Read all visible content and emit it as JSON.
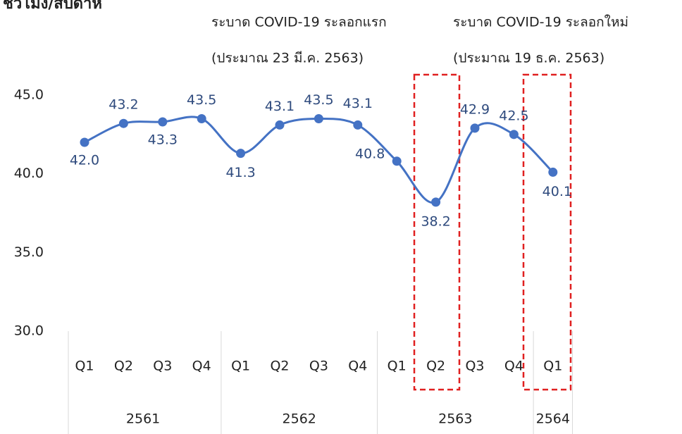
{
  "chart_data": {
    "type": "line",
    "title": "ชั่วโมง/สัปดาห์",
    "annotations": [
      "ระบาด COVID-19 ระลอกแรก",
      "(ประมาณ 23 มี.ค. 2563)",
      "ระบาด COVID-19 ระลอกใหม่",
      "(ประมาณ 19 ธ.ค. 2563)"
    ],
    "categories": [
      "Q1",
      "Q2",
      "Q3",
      "Q4",
      "Q1",
      "Q2",
      "Q3",
      "Q4",
      "Q1",
      "Q2",
      "Q3",
      "Q4",
      "Q1"
    ],
    "category_groups": [
      {
        "label": "2561",
        "size": 4
      },
      {
        "label": "2562",
        "size": 4
      },
      {
        "label": "2563",
        "size": 4
      },
      {
        "label": "2564",
        "size": 1
      }
    ],
    "series": [
      {
        "name": "ชั่วโมง/สัปดาห์",
        "color": "#4472c4",
        "values": [
          42.0,
          43.2,
          43.3,
          43.5,
          41.3,
          43.1,
          43.5,
          43.1,
          40.8,
          38.2,
          42.9,
          42.5,
          40.1
        ],
        "value_labels": [
          "42.0",
          "43.2",
          "43.3",
          "43.5",
          "41.3",
          "43.1",
          "43.5",
          "43.1",
          "40.8",
          "38.2",
          "42.9",
          "42.5",
          "40.1"
        ]
      }
    ],
    "ylim": [
      30,
      45
    ],
    "yticks": [
      {
        "value": 30,
        "label": "30.0"
      },
      {
        "value": 35,
        "label": "35.0"
      },
      {
        "value": 40,
        "label": "40.0"
      },
      {
        "value": 45,
        "label": "45.0"
      }
    ],
    "grid": false
  }
}
